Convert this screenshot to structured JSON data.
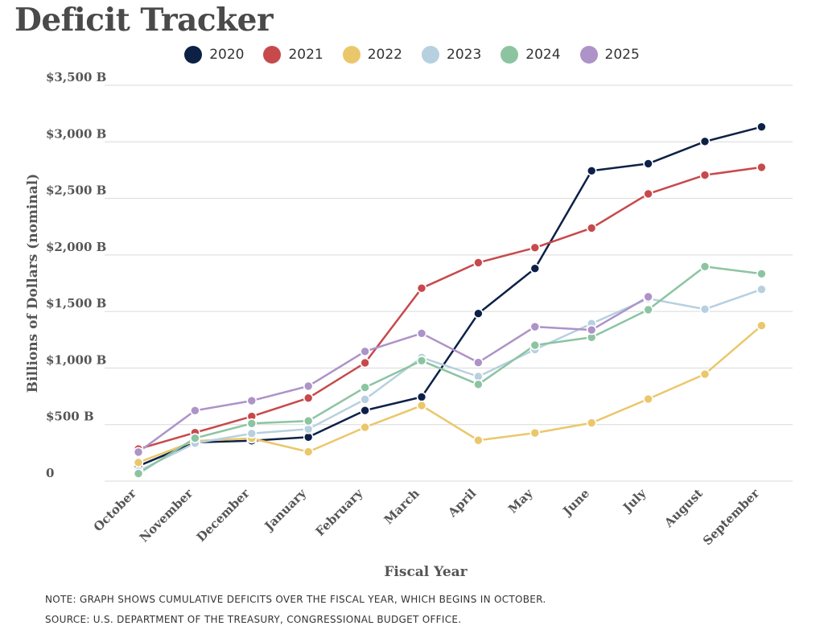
{
  "page": {
    "title": "Deficit Tracker",
    "note": "NOTE: GRAPH SHOWS CUMULATIVE DEFICITS OVER THE FISCAL YEAR, WHICH BEGINS IN OCTOBER.",
    "source": "SOURCE: U.S. DEPARTMENT OF THE TREASURY, CONGRESSIONAL BUDGET OFFICE."
  },
  "chart_data": {
    "type": "line",
    "title": "Deficit Tracker",
    "xlabel": "Fiscal Year",
    "ylabel": "Billions of Dollars (nominal)",
    "categories": [
      "October",
      "November",
      "December",
      "January",
      "February",
      "March",
      "April",
      "May",
      "June",
      "July",
      "August",
      "September"
    ],
    "ylim": [
      0,
      3500
    ],
    "yticks": [
      0,
      500,
      1000,
      1500,
      2000,
      2500,
      3000,
      3500
    ],
    "ytick_labels": [
      "0",
      "$500 B",
      "$1,000 B",
      "$1,500 B",
      "$2,000 B",
      "$2,500 B",
      "$3,000 B",
      "$3,500 B"
    ],
    "grid": "horizontal",
    "legend_position": "top-center",
    "series": [
      {
        "name": "2020",
        "color": "#0d2147",
        "values": [
          134,
          343,
          357,
          389,
          625,
          744,
          1482,
          1880,
          2744,
          2807,
          3003,
          3132
        ]
      },
      {
        "name": "2021",
        "color": "#c8494b",
        "values": [
          284,
          429,
          572,
          735,
          1046,
          1706,
          1932,
          2064,
          2238,
          2540,
          2706,
          2775
        ]
      },
      {
        "name": "2022",
        "color": "#ebc76b",
        "values": [
          165,
          356,
          378,
          259,
          476,
          668,
          361,
          426,
          515,
          726,
          946,
          1375
        ]
      },
      {
        "name": "2023",
        "color": "#b7d0e0",
        "values": [
          88,
          336,
          421,
          460,
          723,
          1093,
          925,
          1164,
          1393,
          1614,
          1520,
          1695
        ]
      },
      {
        "name": "2024",
        "color": "#8cc4a2",
        "values": [
          67,
          380,
          510,
          532,
          828,
          1065,
          855,
          1202,
          1271,
          1516,
          1897,
          1833
        ]
      },
      {
        "name": "2025",
        "color": "#ad93c8",
        "values": [
          257,
          624,
          711,
          840,
          1147,
          1307,
          1049,
          1365,
          1337,
          1630,
          null,
          null
        ]
      }
    ]
  }
}
